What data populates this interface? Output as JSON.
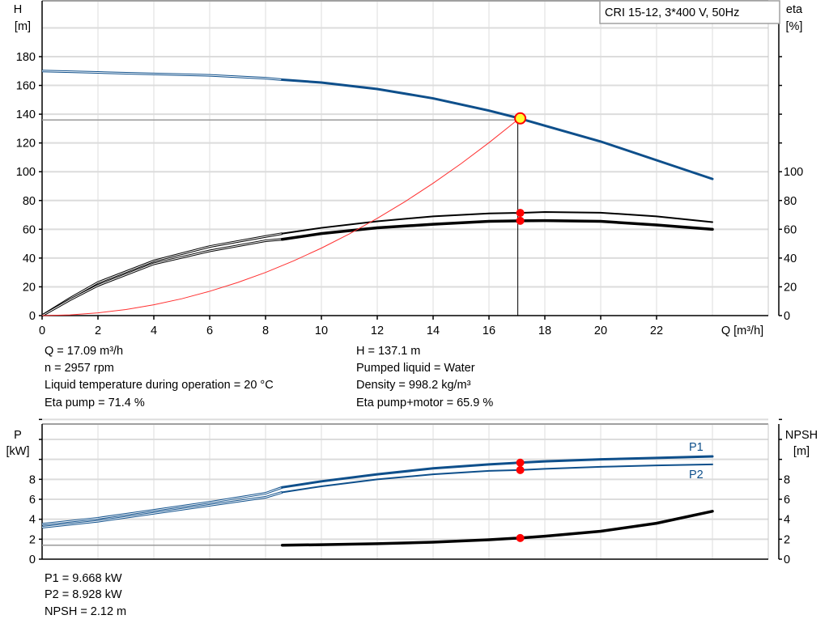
{
  "chart_data": [
    {
      "type": "line",
      "title": "CRI 15-12, 3*400 V, 50Hz",
      "xlabel": "Q [m³/h]",
      "ylabel": {
        "name": "H",
        "unit": "[m]"
      },
      "y2label": {
        "name": "eta",
        "unit": "[%]"
      },
      "xlim": [
        0,
        26
      ],
      "ylim": [
        0,
        200
      ],
      "y2lim": [
        0,
        200
      ],
      "xticks": [
        0,
        2,
        4,
        6,
        8,
        10,
        12,
        14,
        16,
        18,
        20,
        22
      ],
      "yticks": [
        0,
        20,
        40,
        60,
        80,
        100,
        120,
        140,
        160,
        180
      ],
      "y2ticks": [
        0,
        20,
        40,
        60,
        80,
        100
      ],
      "grid": true,
      "series": [
        {
          "id": "H",
          "axis": "left",
          "color": "#0e4f8b",
          "width": 3,
          "thin_below": 8.6,
          "x": [
            0,
            2,
            4,
            6,
            8,
            8.6,
            10,
            12,
            14,
            16,
            17.09,
            18,
            20,
            22,
            24
          ],
          "y": [
            170,
            169,
            168,
            167,
            165,
            164,
            162,
            157.5,
            151,
            142.5,
            137.1,
            132,
            121,
            108,
            95
          ]
        },
        {
          "id": "eta-pump",
          "axis": "right",
          "color": "#000000",
          "width": 2,
          "thin_below": 8.6,
          "x": [
            0,
            1,
            2,
            4,
            6,
            8,
            8.6,
            10,
            12,
            14,
            16,
            17.09,
            18,
            20,
            22,
            24
          ],
          "y": [
            0,
            12,
            23,
            38,
            48,
            55,
            57,
            61,
            65.5,
            69,
            71,
            71.4,
            72,
            71.5,
            69,
            65
          ]
        },
        {
          "id": "eta-pump-motor",
          "axis": "right",
          "color": "#000000",
          "width": 3.5,
          "thin_below": 8.6,
          "x": [
            0,
            1,
            2,
            4,
            6,
            8,
            8.6,
            10,
            12,
            14,
            16,
            17.09,
            18,
            20,
            22,
            24
          ],
          "y": [
            0,
            11,
            21,
            36,
            45,
            52,
            53,
            57,
            61,
            63.5,
            65.5,
            65.9,
            66,
            65.5,
            63,
            60
          ]
        },
        {
          "id": "system-curve",
          "axis": "left",
          "color": "#ff3030",
          "width": 1,
          "x": [
            0,
            1,
            2,
            3,
            4,
            5,
            6,
            7,
            8,
            9,
            10,
            11,
            12,
            13,
            14,
            15,
            16,
            17.09
          ],
          "y": [
            0,
            0.5,
            1.9,
            4.2,
            7.5,
            11.7,
            16.9,
            23,
            30,
            38,
            46.9,
            56.8,
            67.6,
            79.3,
            92,
            105.6,
            120.2,
            137.1
          ]
        }
      ],
      "operating_point": {
        "Q": 17.09,
        "H": 137.1,
        "eta_pump": 71.4,
        "eta_total": 65.9,
        "H_line": 136
      }
    },
    {
      "type": "line",
      "ylabel": {
        "name": "P",
        "unit": "[kW]"
      },
      "y2label": {
        "name": "NPSH",
        "unit": "[m]"
      },
      "xlim": [
        0,
        26
      ],
      "ylim": [
        0,
        14
      ],
      "yticks": [
        0,
        2,
        4,
        6,
        8
      ],
      "y2ticks": [
        0,
        2,
        4,
        6,
        8
      ],
      "grid": true,
      "series": [
        {
          "id": "P1",
          "name": "P1",
          "axis": "left",
          "color": "#0e4f8b",
          "width": 3,
          "thin_below": 8.6,
          "x": [
            0,
            2,
            4,
            6,
            8,
            8.6,
            10,
            12,
            14,
            16,
            17.09,
            18,
            20,
            22,
            24
          ],
          "y": [
            3.5,
            4.1,
            4.9,
            5.7,
            6.6,
            7.2,
            7.8,
            8.5,
            9.1,
            9.5,
            9.668,
            9.8,
            10.0,
            10.15,
            10.3
          ]
        },
        {
          "id": "P2",
          "name": "P2",
          "axis": "left",
          "color": "#0e4f8b",
          "width": 2,
          "thin_below": 8.6,
          "x": [
            0,
            2,
            4,
            6,
            8,
            8.6,
            10,
            12,
            14,
            16,
            17.09,
            18,
            20,
            22,
            24
          ],
          "y": [
            3.2,
            3.8,
            4.6,
            5.4,
            6.2,
            6.7,
            7.3,
            8.0,
            8.5,
            8.85,
            8.928,
            9.05,
            9.25,
            9.4,
            9.5
          ]
        },
        {
          "id": "NPSH",
          "axis": "right",
          "color": "#000000",
          "width": 3.5,
          "thin_below": 8.6,
          "x": [
            0,
            4,
            8.6,
            10,
            12,
            14,
            16,
            17.09,
            18,
            20,
            22,
            24
          ],
          "y": [
            1.4,
            1.4,
            1.4,
            1.45,
            1.55,
            1.7,
            1.95,
            2.12,
            2.3,
            2.8,
            3.6,
            4.8
          ]
        }
      ],
      "operating_points": {
        "P1": 9.668,
        "P2": 8.928,
        "NPSH": 2.12
      }
    }
  ],
  "info_top_left": [
    "Q = 17.09 m³/h",
    "n = 2957 rpm",
    "Liquid temperature during operation = 20 °C",
    "Eta pump = 71.4 %"
  ],
  "info_top_right": [
    "H = 137.1 m",
    "Pumped liquid = Water",
    "Density = 998.2 kg/m³",
    "Eta pump+motor = 65.9 %"
  ],
  "info_bottom": [
    "P1 = 9.668 kW",
    "P2 = 8.928 kW",
    "NPSH = 2.12 m"
  ]
}
